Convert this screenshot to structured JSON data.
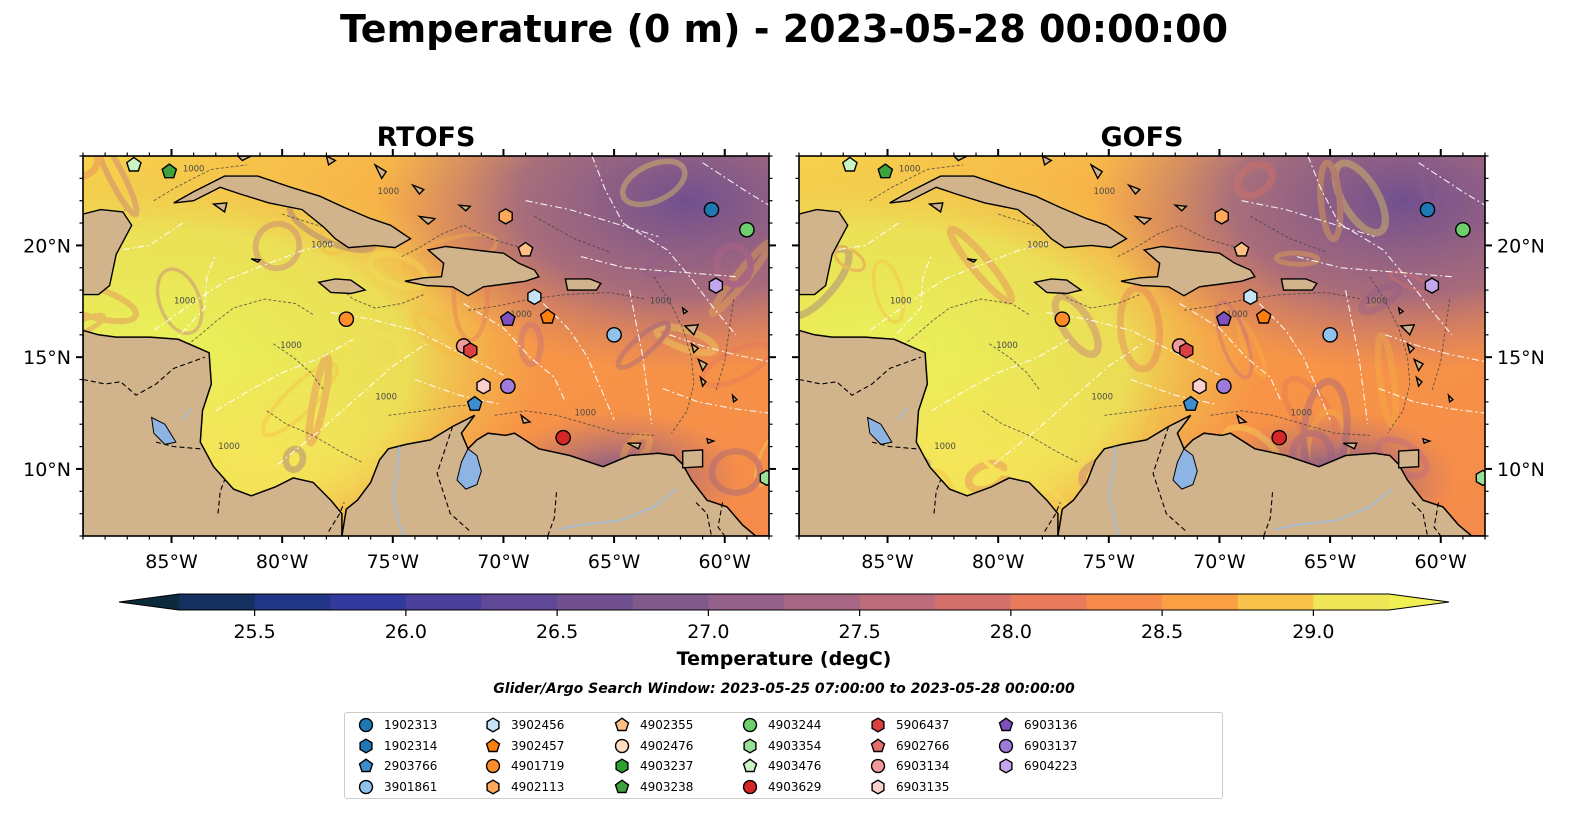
{
  "figure_title": "Temperature (0 m) - 2023-05-28 00:00:00",
  "panels": [
    {
      "title": "RTOFS"
    },
    {
      "title": "GOFS"
    }
  ],
  "map": {
    "lon_range": [
      -89,
      -58
    ],
    "lat_range": [
      7,
      24
    ],
    "lon_ticks": [
      "85°W",
      "80°W",
      "75°W",
      "70°W",
      "65°W",
      "60°W"
    ],
    "lat_ticks": [
      "20°N",
      "15°N",
      "10°N"
    ],
    "land_color": "#d2b48c",
    "lake_color": "#8eb4e3",
    "contour_label": "1000"
  },
  "colorbar": {
    "label": "Temperature (degC)",
    "min": 25.25,
    "max": 29.25,
    "step": 0.25,
    "extend": "both",
    "ticks": [
      "25.5",
      "26.0",
      "26.5",
      "27.0",
      "27.5",
      "28.0",
      "28.5",
      "29.0"
    ],
    "colors": [
      "#0b2a3c",
      "#15305e",
      "#213587",
      "#34399d",
      "#4b3f9c",
      "#5f4896",
      "#70508f",
      "#815a8c",
      "#93618a",
      "#a76785",
      "#bd6c7c",
      "#d4716d",
      "#e97b5c",
      "#f78b4b",
      "#fa9f43",
      "#f9c24a",
      "#f0e758"
    ]
  },
  "search_window": "Glider/Argo Search Window: 2023-05-25 07:00:00 to 2023-05-28 00:00:00",
  "legend": [
    {
      "id": "1902313",
      "marker": "circle",
      "color": "#1f77b4"
    },
    {
      "id": "1902314",
      "marker": "hexagon",
      "color": "#1f77b4"
    },
    {
      "id": "2903766",
      "marker": "pentagon",
      "color": "#3b8fcf"
    },
    {
      "id": "3901861",
      "marker": "circle",
      "color": "#8fc3ec"
    },
    {
      "id": "3902456",
      "marker": "hexagon",
      "color": "#c6e3f7"
    },
    {
      "id": "3902457",
      "marker": "pentagon",
      "color": "#ff7f0e"
    },
    {
      "id": "4901719",
      "marker": "circle",
      "color": "#ff8c2a"
    },
    {
      "id": "4902113",
      "marker": "hexagon",
      "color": "#ffa85a"
    },
    {
      "id": "4902355",
      "marker": "pentagon",
      "color": "#ffbf86"
    },
    {
      "id": "4902476",
      "marker": "circle",
      "color": "#ffdcbf"
    },
    {
      "id": "4903237",
      "marker": "hexagon",
      "color": "#2ca02c"
    },
    {
      "id": "4903238",
      "marker": "pentagon",
      "color": "#3ea33e"
    },
    {
      "id": "4903244",
      "marker": "circle",
      "color": "#6ccf6c"
    },
    {
      "id": "4903354",
      "marker": "hexagon",
      "color": "#98e098"
    },
    {
      "id": "4903476",
      "marker": "pentagon",
      "color": "#c8f5c3"
    },
    {
      "id": "4903629",
      "marker": "circle",
      "color": "#d62728"
    },
    {
      "id": "5906437",
      "marker": "hexagon",
      "color": "#dc3f40"
    },
    {
      "id": "6902766",
      "marker": "pentagon",
      "color": "#e66b6b"
    },
    {
      "id": "6903134",
      "marker": "circle",
      "color": "#f09a9a"
    },
    {
      "id": "6903135",
      "marker": "hexagon",
      "color": "#fbd0ce"
    },
    {
      "id": "6903136",
      "marker": "pentagon",
      "color": "#8050c0"
    },
    {
      "id": "6903137",
      "marker": "circle",
      "color": "#a07ad8"
    },
    {
      "id": "6904223",
      "marker": "hexagon",
      "color": "#c3a6ec"
    }
  ],
  "floats": [
    {
      "id": "4903476",
      "lon": -86.7,
      "lat": 23.6
    },
    {
      "id": "4903238",
      "lon": -85.1,
      "lat": 23.3
    },
    {
      "id": "1902313",
      "lon": -60.6,
      "lat": 21.6
    },
    {
      "id": "4903244",
      "lon": -59.0,
      "lat": 20.7
    },
    {
      "id": "4902113",
      "lon": -69.9,
      "lat": 21.3
    },
    {
      "id": "4902355",
      "lon": -69.0,
      "lat": 19.8
    },
    {
      "id": "6904223",
      "lon": -60.4,
      "lat": 18.2
    },
    {
      "id": "3902456",
      "lon": -68.6,
      "lat": 17.7
    },
    {
      "id": "4901719",
      "lon": -77.1,
      "lat": 16.7
    },
    {
      "id": "6903136",
      "lon": -69.8,
      "lat": 16.7
    },
    {
      "id": "3902457",
      "lon": -68.0,
      "lat": 16.8
    },
    {
      "id": "3901861",
      "lon": -65.0,
      "lat": 16.0
    },
    {
      "id": "6903134",
      "lon": -71.8,
      "lat": 15.5
    },
    {
      "id": "5906437",
      "lon": -71.5,
      "lat": 15.3
    },
    {
      "id": "6903135",
      "lon": -70.9,
      "lat": 13.7
    },
    {
      "id": "6903137",
      "lon": -69.8,
      "lat": 13.7
    },
    {
      "id": "2903766",
      "lon": -71.3,
      "lat": 12.9
    },
    {
      "id": "4903629",
      "lon": -67.3,
      "lat": 11.4
    },
    {
      "id": "4903354",
      "lon": -58.1,
      "lat": 9.6
    }
  ]
}
